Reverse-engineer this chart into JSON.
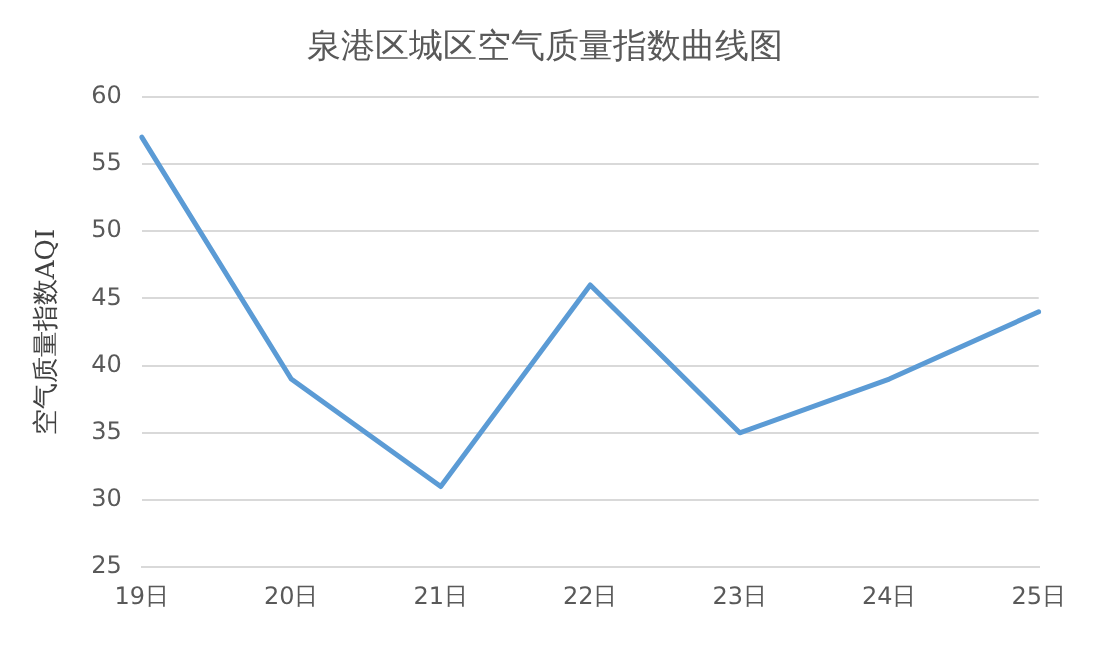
{
  "chart_data": {
    "type": "line",
    "title": "泉港区城区空气质量指数曲线图",
    "ylabel": "空气质量指数AQI",
    "categories": [
      "19日",
      "20日",
      "21日",
      "22日",
      "23日",
      "24日",
      "25日"
    ],
    "series": [
      {
        "color": "#5b9bd5",
        "values": [
          57,
          39,
          31,
          46,
          35,
          39,
          44
        ]
      }
    ],
    "ylim": [
      25,
      60
    ],
    "yticks": [
      25,
      30,
      35,
      40,
      45,
      50,
      55,
      60
    ],
    "grid": "y",
    "legend": false,
    "marker": "none",
    "line_style": "solid"
  }
}
